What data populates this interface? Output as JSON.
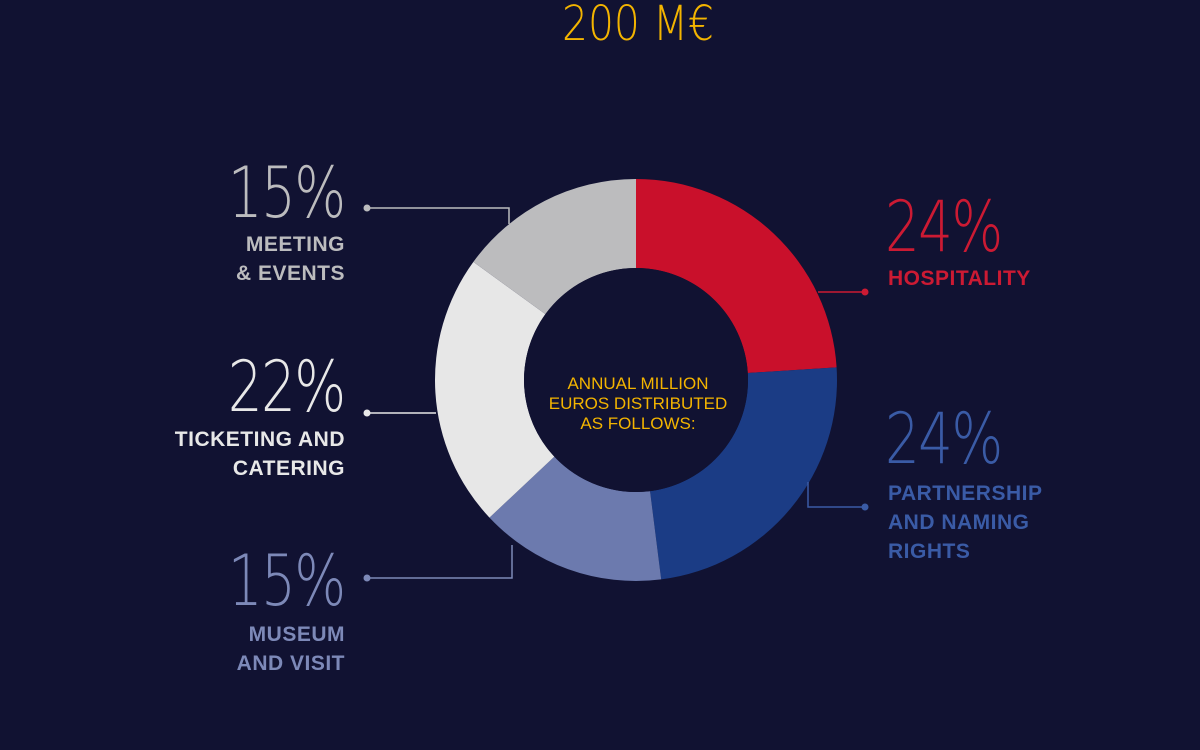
{
  "chart_data": {
    "type": "pie",
    "center_value": "200 M€",
    "center_description": "ANNUAL MILLION\nEUROS DISTRIBUTED\nAS FOLLOWS:",
    "slices": [
      {
        "id": "hospitality",
        "value": 24,
        "percent_label": "24%",
        "label": "HOSPITALITY",
        "color": "#c9102b"
      },
      {
        "id": "partnership",
        "value": 24,
        "percent_label": "24%",
        "label": "PARTNERSHIP\nAND NAMING\nRIGHTS",
        "color": "#1b3c85"
      },
      {
        "id": "museum",
        "value": 15,
        "percent_label": "15%",
        "label": "MUSEUM\nAND VISIT",
        "color": "#6c7aae"
      },
      {
        "id": "ticketing",
        "value": 22,
        "percent_label": "22%",
        "label": "TICKETING AND\nCATERING",
        "color": "#e7e7e7"
      },
      {
        "id": "meeting",
        "value": 15,
        "percent_label": "15%",
        "label": "MEETING\n& EVENTS",
        "color": "#bcbcbe"
      }
    ],
    "text_colors": {
      "hospitality": "#cc1a33",
      "partnership": "#3a5ba6",
      "museum": "#7d89b8",
      "ticketing": "#e8e8e8",
      "meeting": "#bcbcbe",
      "center": "#f3b400",
      "background": "#111232"
    }
  }
}
